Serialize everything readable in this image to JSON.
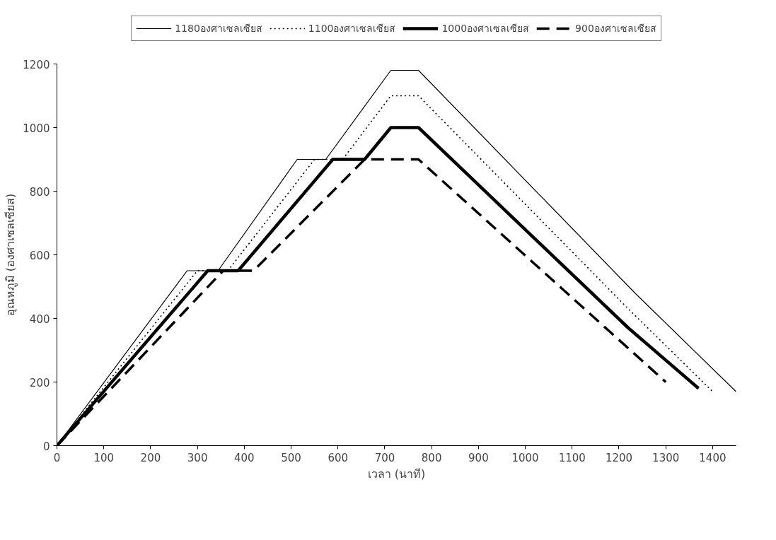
{
  "chart_data": {
    "type": "line",
    "xlabel": "เวลา (นาที)",
    "ylabel": "อุณหภูมิ (องศาเซลเซียส)",
    "xlim": [
      0,
      1450
    ],
    "xticks": [
      0,
      100,
      200,
      300,
      400,
      500,
      600,
      700,
      800,
      900,
      1000,
      1100,
      1200,
      1300,
      1400
    ],
    "ylim": [
      0,
      1200
    ],
    "yticks": [
      0,
      200,
      400,
      600,
      800,
      1000,
      1200
    ],
    "grid": false,
    "legend": "top",
    "marker": "none",
    "series": [
      {
        "name": "1180องศาเซลเซียส",
        "color": "#000000",
        "line_style": "solid",
        "x": [
          0,
          278,
          344,
          513,
          574,
          713,
          772,
          1234,
          1450
        ],
        "values": [
          0,
          550,
          550,
          900,
          900,
          1180,
          1180,
          480,
          170
        ]
      },
      {
        "name": "1100องศาเซลเซียส",
        "color": "#000000",
        "line_style": "dotted",
        "x": [
          0,
          300,
          365,
          550,
          610,
          713,
          772,
          1220,
          1400
        ],
        "values": [
          0,
          550,
          550,
          900,
          900,
          1100,
          1100,
          430,
          170
        ]
      },
      {
        "name": "1000องศาเซลเซียส",
        "color": "#000000",
        "line_style": "solid",
        "x": [
          0,
          322,
          387,
          589,
          657,
          713,
          772,
          1220,
          1370
        ],
        "values": [
          0,
          550,
          550,
          900,
          900,
          1000,
          1000,
          370,
          180
        ]
      },
      {
        "name": "900องศาเซลเซียส",
        "color": "#000000",
        "line_style": "dashed",
        "x": [
          0,
          355,
          420,
          657,
          772,
          1300
        ],
        "values": [
          0,
          550,
          550,
          900,
          900,
          200
        ]
      }
    ]
  }
}
